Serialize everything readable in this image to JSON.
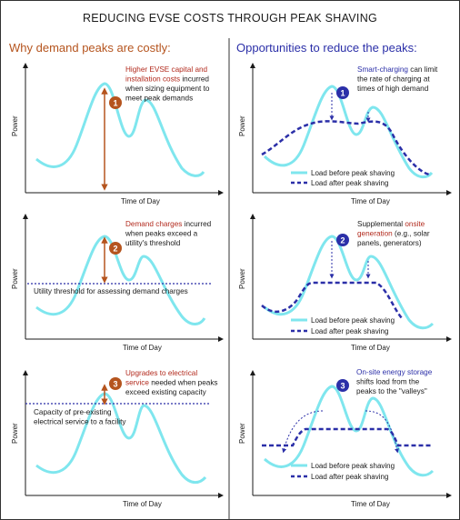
{
  "title": "REDUCING EVSE COSTS THROUGH PEAK SHAVING",
  "left_header": "Why demand peaks are costly:",
  "right_header": "Opportunities to reduce the peaks:",
  "axes": {
    "y_label": "Power",
    "x_label": "Time of Day"
  },
  "legend": {
    "before": "Load before peak shaving",
    "after": "Load after peak shaving"
  },
  "colors": {
    "left_accent": "#b5541e",
    "right_accent": "#2b2fa8",
    "load_curve": "#7fe6ee",
    "after_line": "#2b2fa8",
    "arrow": "#b5541e"
  },
  "panels": {
    "left1": {
      "number": "1",
      "highlight1": "Higher EVSE capital and",
      "highlight2": "installation costs",
      "rest2": " incurred",
      "line3": "when sizing equipment to",
      "line4": "meet peak demands"
    },
    "left2": {
      "number": "2",
      "highlight1": "Demand charges",
      "rest1": " incurred",
      "line2": "when peaks exceed a",
      "line3": "utility's threshold",
      "threshold_label": "Utility threshold for assessing demand charges"
    },
    "left3": {
      "number": "3",
      "highlight1": "Upgrades to electrical",
      "highlight2": "service",
      "rest2": " needed when peaks",
      "line3": "exceed existing capacity",
      "capacity_label1": "Capacity of pre-existing",
      "capacity_label2": "electrical service to a facility"
    },
    "right1": {
      "number": "1",
      "highlight1": "Smart-charging",
      "rest1": " can limit",
      "line2": "the rate of charging at",
      "line3": "times of high demand"
    },
    "right2": {
      "number": "2",
      "line1_prefix": "Supplemental ",
      "highlight1": "onsite",
      "highlight2": "generation",
      "rest2": " (e.g., solar",
      "line3": "panels, generators)"
    },
    "right3": {
      "number": "3",
      "highlight1": "On-site energy storage",
      "line2": "shifts load from the",
      "line3": "peaks to the \"valleys\""
    }
  }
}
